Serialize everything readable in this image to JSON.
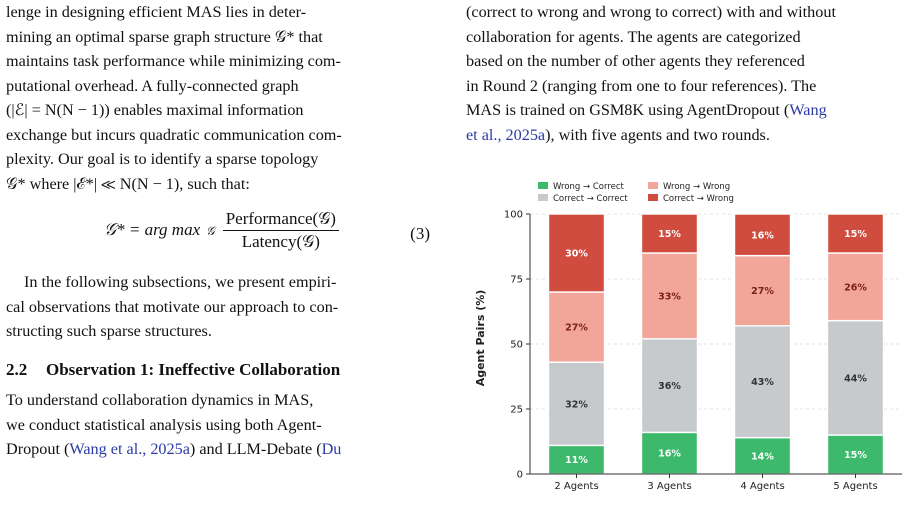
{
  "left_column": {
    "para1_lines": [
      "lenge in designing efficient MAS lies in deter-",
      "mining an optimal sparse graph structure 𝒢* that",
      "maintains task performance while minimizing com-",
      "putational overhead. A fully-connected graph",
      "(|ℰ| = N(N − 1)) enables maximal information",
      "exchange but incurs quadratic communication com-",
      "plexity. Our goal is to identify a sparse topology",
      "𝒢* where |ℰ*| ≪ N(N − 1), such that:"
    ],
    "equation": {
      "lhs": "𝒢* = arg max",
      "sub": "𝒢",
      "numerator": "Performance(𝒢)",
      "denominator": "Latency(𝒢)",
      "number": "(3)"
    },
    "para2_lines": [
      "In the following subsections, we present empiri-",
      "cal observations that motivate our approach to con-",
      "structing such sparse structures."
    ],
    "section": {
      "number": "2.2",
      "title": "Observation 1: Ineffective Collaboration"
    },
    "para3": {
      "line1": "To understand collaboration dynamics in MAS,",
      "line2": "we conduct statistical analysis using both Agent-",
      "line3_pre": "Dropout (",
      "line3_cite1": "Wang et al., 2025a",
      "line3_mid": ") and LLM-Debate (",
      "line3_cite2": "Du"
    }
  },
  "right_column": {
    "caption_lines": [
      "(correct to wrong and wrong to correct) with and without",
      "collaboration for agents. The agents are categorized",
      "based on the number of other agents they referenced",
      "in Round 2 (ranging from one to four references). The"
    ],
    "caption_line5_pre": "MAS is trained on GSM8K using AgentDropout (",
    "caption_line5_cite": "Wang",
    "caption_line6_cite": "et al., 2025a",
    "caption_line6_post": "), with five agents and two rounds."
  },
  "chart_data": {
    "type": "bar",
    "stacked": true,
    "categories": [
      "2 Agents",
      "3 Agents",
      "4 Agents",
      "5 Agents"
    ],
    "series": [
      {
        "name": "Wrong → Correct",
        "values": [
          11,
          16,
          14,
          15
        ],
        "color": "#3cb96a"
      },
      {
        "name": "Correct → Correct",
        "values": [
          32,
          36,
          43,
          44
        ],
        "color": "#c6cacd"
      },
      {
        "name": "Wrong → Wrong",
        "values": [
          27,
          33,
          27,
          26
        ],
        "color": "#f2a69a"
      },
      {
        "name": "Correct → Wrong",
        "values": [
          30,
          15,
          16,
          15
        ],
        "color": "#cf4c3f"
      }
    ],
    "ylabel": "Agent Pairs (%)",
    "xlabel": "",
    "ylim": [
      0,
      100
    ],
    "yticks": [
      0,
      25,
      50,
      75,
      100
    ],
    "grid": true,
    "legend": "top-left"
  }
}
